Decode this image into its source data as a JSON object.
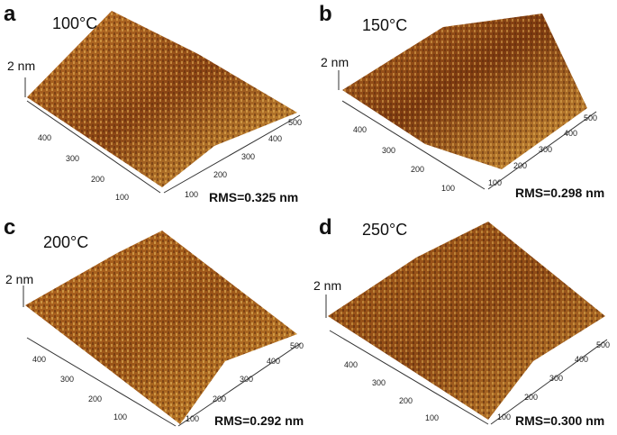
{
  "panels": [
    {
      "id": "a",
      "letter": "a",
      "temperature": "100°C",
      "z_scale": "2 nm",
      "rms": "RMS=0.325 nm",
      "y_ticks": [
        "400",
        "300",
        "200",
        "100"
      ],
      "x_ticks": [
        "100",
        "200",
        "300",
        "400",
        "500"
      ]
    },
    {
      "id": "b",
      "letter": "b",
      "temperature": "150°C",
      "z_scale": "2 nm",
      "rms": "RMS=0.298 nm",
      "y_ticks": [
        "400",
        "300",
        "200",
        "100"
      ],
      "x_ticks": [
        "100",
        "200",
        "300",
        "400",
        "500"
      ]
    },
    {
      "id": "c",
      "letter": "c",
      "temperature": "200°C",
      "z_scale": "2 nm",
      "rms": "RMS=0.292 nm",
      "y_ticks": [
        "400",
        "300",
        "200",
        "100"
      ],
      "x_ticks": [
        "100",
        "200",
        "300",
        "400",
        "500"
      ]
    },
    {
      "id": "d",
      "letter": "d",
      "temperature": "250°C",
      "z_scale": "2 nm",
      "rms": "RMS=0.300 nm",
      "y_ticks": [
        "400",
        "300",
        "200",
        "100"
      ],
      "x_ticks": [
        "100",
        "200",
        "300",
        "400",
        "500"
      ]
    }
  ],
  "colors": {
    "surface_dark": "#5a2a0c",
    "surface_mid": "#a65a1c",
    "surface_light": "#e0b050",
    "axis": "#333333"
  }
}
